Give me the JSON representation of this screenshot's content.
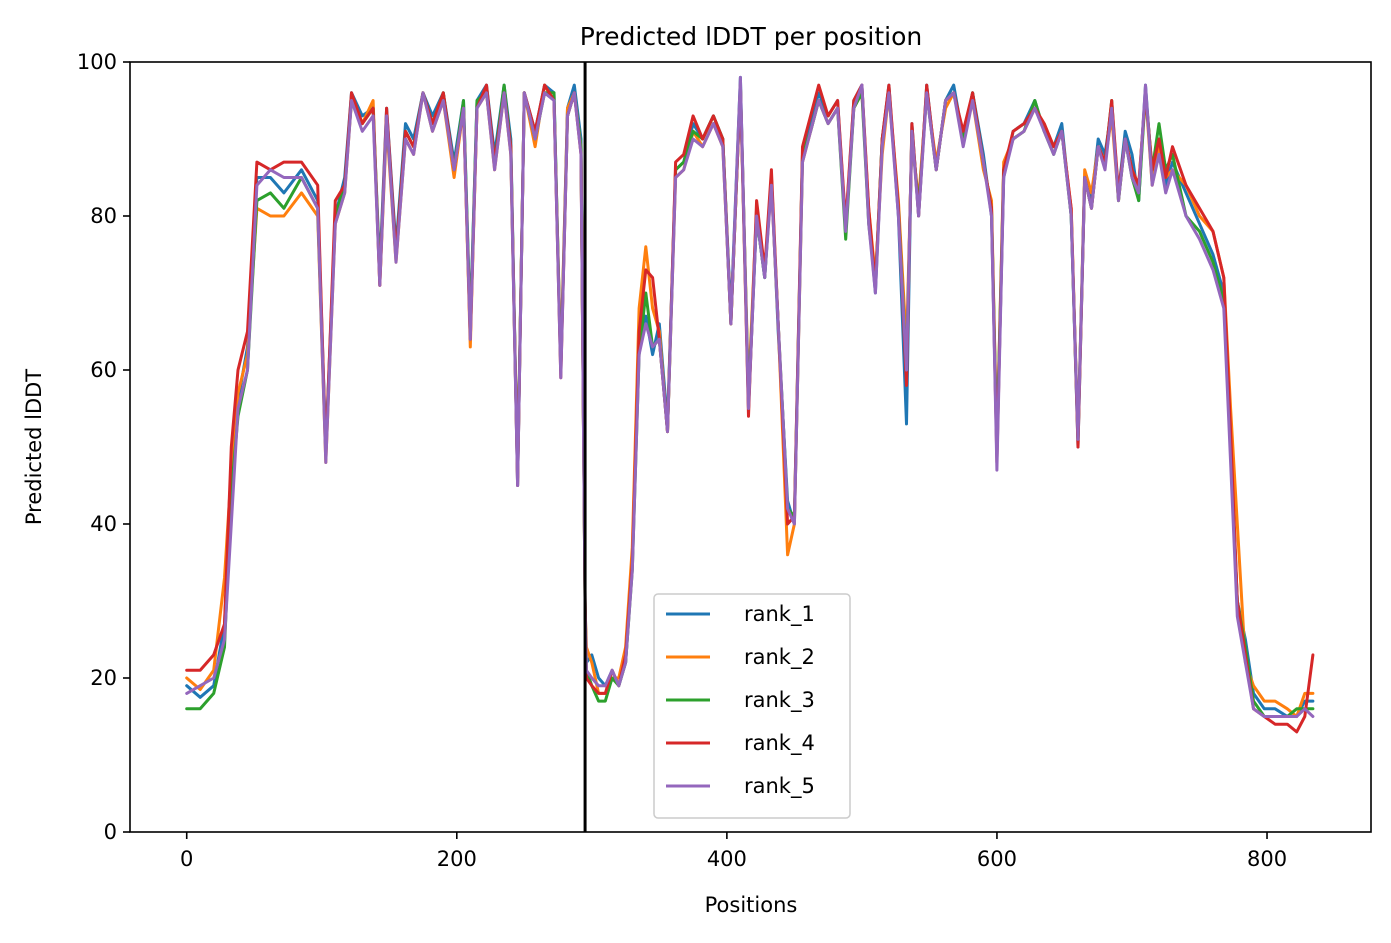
{
  "chart_data": {
    "type": "line",
    "title": "Predicted lDDT per position",
    "xlabel": "Positions",
    "ylabel": "Predicted lDDT",
    "xlim": [
      -42,
      877
    ],
    "ylim": [
      0,
      100
    ],
    "xticks": [
      0,
      200,
      400,
      600,
      800
    ],
    "yticks": [
      0,
      20,
      40,
      60,
      80,
      100
    ],
    "chain_break_x": 295,
    "legend_position": "lower center",
    "grid": false,
    "x": [
      0,
      10,
      20,
      28,
      33,
      38,
      45,
      52,
      62,
      72,
      85,
      97,
      103,
      110,
      117,
      122,
      130,
      138,
      143,
      148,
      155,
      162,
      168,
      175,
      182,
      190,
      198,
      205,
      210,
      215,
      222,
      228,
      235,
      240,
      245,
      250,
      258,
      265,
      272,
      277,
      282,
      287,
      292,
      295,
      296,
      300,
      305,
      310,
      315,
      320,
      325,
      330,
      335,
      340,
      345,
      350,
      356,
      362,
      368,
      375,
      382,
      390,
      397,
      403,
      410,
      416,
      422,
      428,
      433,
      438,
      445,
      450,
      456,
      462,
      468,
      475,
      482,
      488,
      494,
      500,
      505,
      510,
      515,
      520,
      527,
      533,
      537,
      542,
      548,
      555,
      562,
      568,
      575,
      582,
      590,
      596,
      600,
      605,
      612,
      620,
      628,
      635,
      642,
      648,
      655,
      660,
      665,
      670,
      675,
      680,
      685,
      690,
      695,
      700,
      705,
      710,
      715,
      720,
      725,
      730,
      740,
      750,
      760,
      768,
      773,
      778,
      784,
      790,
      798,
      806,
      815,
      822,
      828,
      834
    ],
    "series": [
      {
        "name": "rank_1",
        "color": "#1f77b4",
        "values": [
          19,
          17.5,
          19,
          27,
          45,
          56,
          63,
          85,
          85,
          83,
          86,
          82,
          50,
          80,
          85,
          96,
          93,
          94,
          73,
          94,
          76,
          92,
          90,
          96,
          93,
          96,
          87,
          95,
          66,
          95,
          97,
          88,
          97,
          90,
          45,
          96,
          91,
          97,
          96,
          60,
          94,
          97,
          90,
          30,
          22,
          23,
          20,
          19,
          21,
          19,
          22,
          35,
          64,
          67,
          62,
          66,
          53,
          86,
          87,
          92,
          90,
          93,
          90,
          67,
          98,
          55,
          80,
          72,
          85,
          65,
          43,
          40,
          88,
          92,
          96,
          93,
          95,
          78,
          95,
          97,
          80,
          70,
          90,
          97,
          80,
          53,
          92,
          80,
          97,
          86,
          95,
          97,
          90,
          96,
          88,
          80,
          49,
          85,
          91,
          92,
          95,
          91,
          89,
          92,
          80,
          50,
          85,
          82,
          90,
          88,
          94,
          83,
          91,
          88,
          82,
          97,
          85,
          90,
          84,
          87,
          83,
          79,
          75,
          70,
          50,
          30,
          25,
          18,
          16,
          16,
          15,
          15,
          17,
          17
        ]
      },
      {
        "name": "rank_2",
        "color": "#ff7f0e",
        "values": [
          20,
          18.5,
          21,
          33,
          47,
          57,
          62,
          81,
          80,
          80,
          83,
          80,
          48,
          79,
          83,
          95,
          92,
          95,
          71,
          92,
          74,
          90,
          88,
          96,
          91,
          95,
          85,
          94,
          63,
          94,
          96,
          86,
          96,
          88,
          46,
          96,
          89,
          97,
          95,
          61,
          94,
          96,
          89,
          29,
          24,
          22,
          18,
          18,
          20,
          20,
          24,
          37,
          68,
          76,
          68,
          65,
          52,
          85,
          86,
          91,
          89,
          92,
          89,
          66,
          97,
          57,
          81,
          73,
          84,
          66,
          36,
          40,
          87,
          91,
          95,
          92,
          94,
          79,
          94,
          96,
          81,
          72,
          88,
          96,
          82,
          63,
          90,
          82,
          96,
          87,
          94,
          96,
          90,
          95,
          86,
          82,
          50,
          87,
          90,
          91,
          94,
          92,
          89,
          91,
          81,
          51,
          86,
          83,
          89,
          87,
          93,
          82,
          90,
          86,
          84,
          96,
          84,
          89,
          85,
          86,
          84,
          80,
          78,
          72,
          55,
          40,
          22,
          19,
          17,
          17,
          16,
          15,
          18,
          18
        ]
      },
      {
        "name": "rank_3",
        "color": "#2ca02c",
        "values": [
          16,
          16,
          18,
          24,
          44,
          54,
          60,
          82,
          83,
          81,
          85,
          81,
          49,
          80,
          84,
          95,
          92,
          94,
          72,
          93,
          75,
          91,
          89,
          96,
          92,
          96,
          86,
          95,
          65,
          95,
          96,
          87,
          97,
          89,
          46,
          96,
          90,
          96,
          96,
          60,
          93,
          96,
          89,
          29,
          21,
          19,
          17,
          17,
          20,
          19,
          22,
          34,
          62,
          70,
          63,
          64,
          52,
          86,
          87,
          91,
          90,
          93,
          90,
          66,
          97,
          56,
          80,
          72,
          85,
          66,
          42,
          41,
          88,
          91,
          95,
          92,
          94,
          77,
          94,
          96,
          79,
          71,
          90,
          96,
          81,
          60,
          91,
          81,
          96,
          86,
          95,
          96,
          90,
          96,
          87,
          81,
          50,
          86,
          90,
          91,
          95,
          91,
          88,
          91,
          80,
          51,
          85,
          81,
          89,
          87,
          95,
          82,
          90,
          85,
          82,
          96,
          86,
          92,
          86,
          88,
          80,
          78,
          74,
          69,
          50,
          30,
          24,
          17,
          15,
          15,
          15,
          16,
          16,
          16
        ]
      },
      {
        "name": "rank_4",
        "color": "#d62728",
        "values": [
          21,
          21,
          23,
          27,
          50,
          60,
          65,
          87,
          86,
          87,
          87,
          84,
          49,
          82,
          84,
          96,
          92,
          94,
          71,
          94,
          75,
          91,
          89,
          96,
          92,
          96,
          86,
          94,
          64,
          94,
          97,
          87,
          96,
          89,
          45,
          96,
          91,
          97,
          95,
          59,
          93,
          96,
          88,
          30,
          20,
          19,
          18,
          18,
          21,
          19,
          23,
          35,
          65,
          73,
          72,
          64,
          52,
          87,
          88,
          93,
          90,
          93,
          90,
          66,
          97,
          54,
          82,
          73,
          86,
          66,
          40,
          41,
          89,
          93,
          97,
          93,
          95,
          79,
          95,
          97,
          81,
          71,
          90,
          97,
          81,
          58,
          92,
          80,
          97,
          86,
          95,
          96,
          91,
          96,
          87,
          81,
          48,
          86,
          91,
          92,
          94,
          92,
          89,
          91,
          81,
          50,
          85,
          81,
          89,
          87,
          95,
          83,
          90,
          86,
          84,
          96,
          86,
          90,
          85,
          89,
          84,
          81,
          78,
          72,
          52,
          30,
          23,
          16,
          15,
          14,
          14,
          13,
          15,
          23
        ]
      },
      {
        "name": "rank_5",
        "color": "#9467bd",
        "values": [
          18,
          19,
          20,
          25,
          40,
          55,
          60,
          84,
          86,
          85,
          85,
          81,
          48,
          79,
          83,
          95,
          91,
          93,
          71,
          93,
          74,
          90,
          88,
          96,
          91,
          95,
          86,
          94,
          64,
          94,
          96,
          86,
          96,
          88,
          45,
          96,
          90,
          96,
          95,
          59,
          93,
          96,
          88,
          29,
          21,
          20,
          19,
          19,
          21,
          19,
          22,
          34,
          62,
          66,
          63,
          64,
          52,
          85,
          86,
          90,
          89,
          92,
          89,
          66,
          98,
          55,
          80,
          72,
          84,
          66,
          42,
          40,
          87,
          91,
          95,
          92,
          94,
          78,
          94,
          97,
          79,
          70,
          89,
          96,
          80,
          60,
          91,
          80,
          96,
          86,
          95,
          96,
          89,
          95,
          87,
          80,
          47,
          85,
          90,
          91,
          94,
          91,
          88,
          91,
          80,
          51,
          85,
          81,
          89,
          86,
          94,
          82,
          90,
          85,
          83,
          97,
          84,
          88,
          83,
          86,
          80,
          77,
          73,
          68,
          48,
          28,
          22,
          16,
          15,
          15,
          15,
          15,
          16,
          15
        ]
      }
    ]
  }
}
